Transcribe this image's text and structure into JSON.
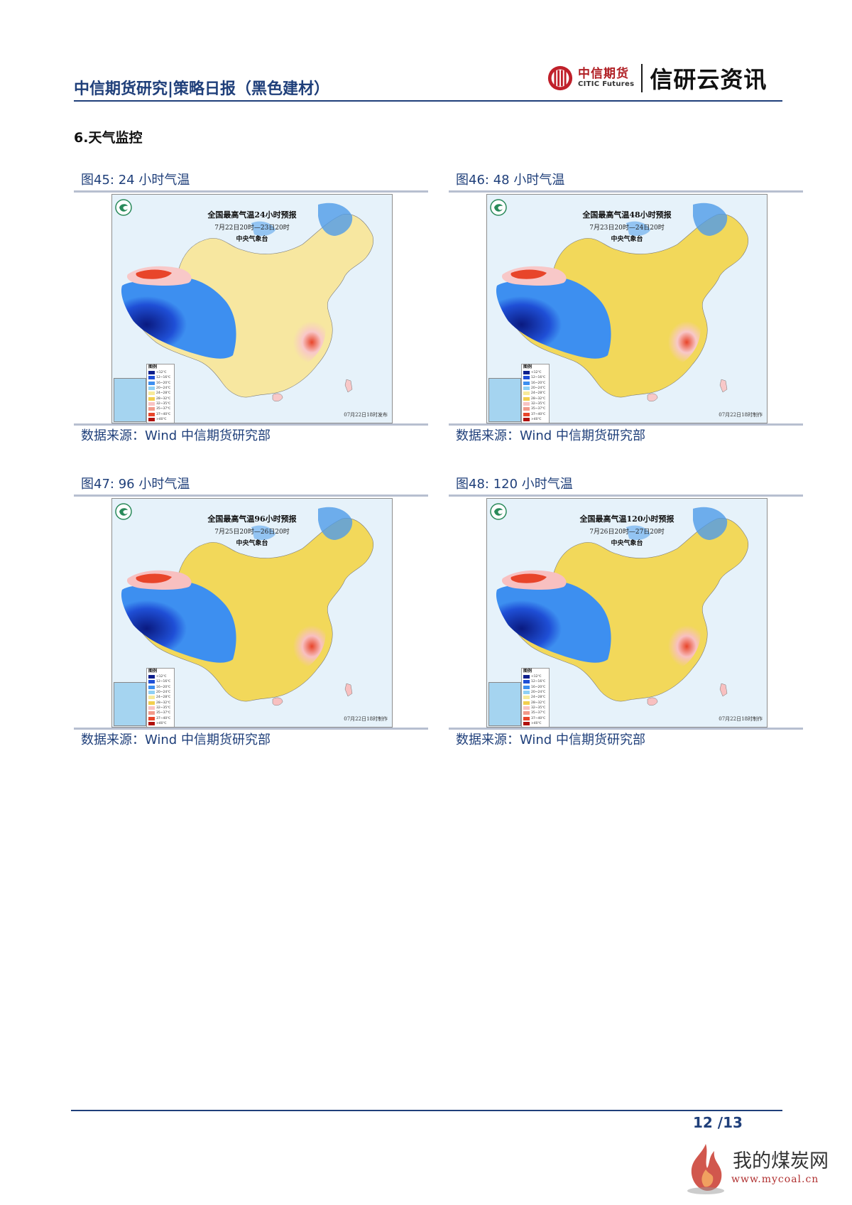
{
  "header": {
    "title": "中信期货研究|策略日报（黑色建材）",
    "logo_cn": "中信期货",
    "logo_en": "CITIC Futures",
    "brand": "信研云资讯"
  },
  "section_title": "6.天气监控",
  "legend": {
    "title": "图例",
    "labels": [
      "<12℃",
      "12~16℃",
      "16~20℃",
      "20~24℃",
      "24~28℃",
      "28~32℃",
      "32~35℃",
      "35~37℃",
      "37~40℃",
      ">40℃"
    ],
    "colors": [
      "#0d1f8c",
      "#1f4fd6",
      "#3d8ff0",
      "#8fd0f5",
      "#f7ea9a",
      "#f2cf4e",
      "#f8c3c3",
      "#f29a8a",
      "#e8452a",
      "#b0100c"
    ]
  },
  "figures": [
    {
      "caption": "图45: 24 小时气温",
      "map_title": "全国最高气温24小时预报",
      "map_period": "7月22日20时—23日20时",
      "map_org": "中央气象台",
      "issue": "07月22日18时发布",
      "source": "数据来源：Wind  中信期货研究部",
      "palette": [
        "#0d1f8c",
        "#f7e7a0",
        "#f8c8c8",
        "#e8452a"
      ]
    },
    {
      "caption": "图46: 48 小时气温",
      "map_title": "全国最高气温48小时预报",
      "map_period": "7月23日20时—24日20时",
      "map_org": "中央气象台",
      "issue": "07月22日18时制作",
      "source": "数据来源：Wind  中信期货研究部",
      "palette": [
        "#0d1f8c",
        "#f2d85a",
        "#f8c8c8",
        "#e8452a"
      ]
    },
    {
      "caption": "图47: 96 小时气温",
      "map_title": "全国最高气温96小时预报",
      "map_period": "7月25日20时—26日20时",
      "map_org": "中央气象台",
      "issue": "07月22日18时制作",
      "source": "数据来源：Wind  中信期货研究部",
      "palette": [
        "#0d1f8c",
        "#f2d85a",
        "#f8c0c0",
        "#e8452a"
      ]
    },
    {
      "caption": "图48: 120 小时气温",
      "map_title": "全国最高气温120小时预报",
      "map_period": "7月26日20时—27日20时",
      "map_org": "中央气象台",
      "issue": "07月22日18时制作",
      "source": "数据来源：Wind  中信期货研究部",
      "palette": [
        "#0d1f8c",
        "#f2d85a",
        "#f8c0c0",
        "#e8452a"
      ]
    }
  ],
  "footer": {
    "page": "12  /13"
  },
  "watermark": {
    "cn": "我的煤炭网",
    "url": "www.mycoal.cn"
  }
}
